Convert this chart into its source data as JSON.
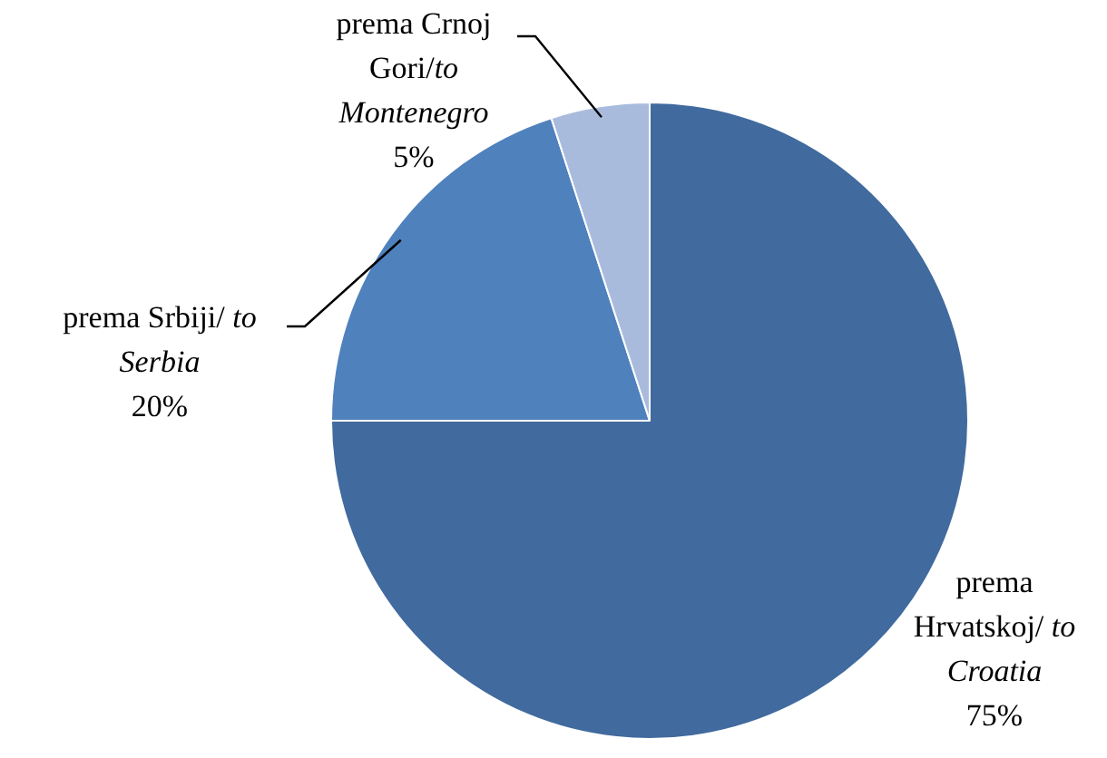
{
  "chart_data": {
    "type": "pie",
    "categories": [
      "prema Hrvatskoj/ to Croatia",
      "prema Srbiji/ to Serbia",
      "prema Crnoj Gori/to Montenegro"
    ],
    "values": [
      75,
      20,
      5
    ],
    "colors": [
      "#416a9e",
      "#4f81bd",
      "#a9bbdd"
    ],
    "value_labels": [
      "75%",
      "20%",
      "5%"
    ],
    "legend": false
  }
}
